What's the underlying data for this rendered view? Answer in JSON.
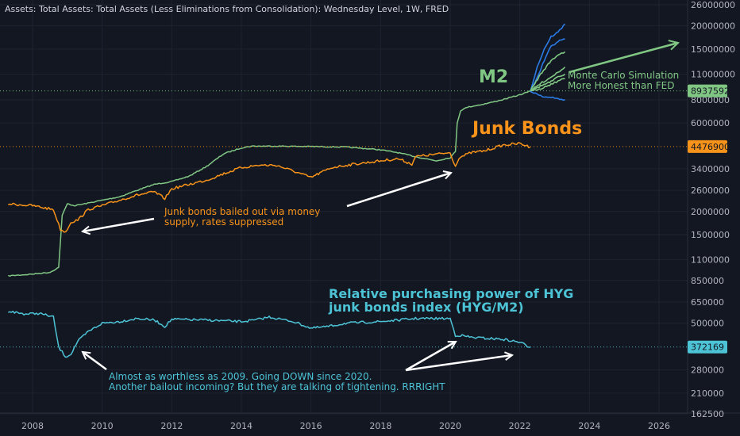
{
  "header": {
    "title": "Assets: Total Assets: Total Assets (Less Eliminations from Consolidation): Wednesday Level, 1W, FRED"
  },
  "colors": {
    "background": "#131722",
    "grid": "#1f2330",
    "m2": "#81c784",
    "junk": "#f7931a",
    "ratio": "#4dc3d6",
    "blue_sim": "#2a7be6",
    "arrow_white": "#ffffff",
    "axis_text": "#b2b5be"
  },
  "chart_data": {
    "type": "line",
    "y_scale": "log",
    "x_ticks": [
      "2008",
      "2010",
      "2012",
      "2014",
      "2016",
      "2018",
      "2020",
      "2022",
      "2024",
      "2026"
    ],
    "y_ticks": [
      "26000000",
      "20000000",
      "15000000",
      "11000000",
      "8000000",
      "6000000",
      "3400000",
      "2600000",
      "2000000",
      "1500000",
      "1100000",
      "850000",
      "650000",
      "500000",
      "280000",
      "210000",
      "162500"
    ],
    "last_value_labels": [
      {
        "series": "M2",
        "value": "8937592"
      },
      {
        "series": "Junk Bonds",
        "value": "4476900"
      },
      {
        "series": "HYG/M2",
        "value": "372169"
      }
    ],
    "series": [
      {
        "name": "M2",
        "x": [
          2007.3,
          2008.0,
          2008.5,
          2008.75,
          2008.85,
          2009.0,
          2009.2,
          2009.5,
          2010.0,
          2010.5,
          2011.0,
          2011.5,
          2012.0,
          2012.5,
          2013.0,
          2013.5,
          2014.0,
          2014.3,
          2014.6,
          2015.0,
          2016.0,
          2017.0,
          2018.0,
          2018.5,
          2019.0,
          2019.6,
          2020.0,
          2020.15,
          2020.2,
          2020.3,
          2020.5,
          2021.0,
          2021.5,
          2022.0,
          2022.3
        ],
        "y": [
          900000,
          920000,
          940000,
          1000000,
          1900000,
          2200000,
          2150000,
          2200000,
          2300000,
          2400000,
          2600000,
          2800000,
          2900000,
          3100000,
          3500000,
          4100000,
          4400000,
          4500000,
          4500000,
          4500000,
          4480000,
          4450000,
          4300000,
          4150000,
          3950000,
          3750000,
          3900000,
          4200000,
          6000000,
          7000000,
          7300000,
          7600000,
          8000000,
          8500000,
          8900000
        ]
      },
      {
        "name": "Junk Bonds",
        "x": [
          2007.3,
          2008.0,
          2008.6,
          2008.8,
          2008.95,
          2009.1,
          2009.3,
          2009.6,
          2010.0,
          2010.5,
          2011.0,
          2011.5,
          2011.8,
          2012.0,
          2012.5,
          2013.0,
          2013.5,
          2014.0,
          2014.5,
          2015.0,
          2015.5,
          2016.0,
          2016.3,
          2016.6,
          2017.0,
          2017.5,
          2018.0,
          2018.5,
          2018.9,
          2019.0,
          2019.5,
          2020.0,
          2020.15,
          2020.25,
          2020.4,
          2020.6,
          2021.0,
          2021.5,
          2022.0,
          2022.3
        ],
        "y": [
          2200000,
          2150000,
          2050000,
          1600000,
          1550000,
          1750000,
          1800000,
          2050000,
          2150000,
          2300000,
          2450000,
          2550000,
          2350000,
          2650000,
          2800000,
          2950000,
          3200000,
          3450000,
          3550000,
          3550000,
          3300000,
          3050000,
          3250000,
          3450000,
          3550000,
          3650000,
          3750000,
          3850000,
          3600000,
          3950000,
          4050000,
          4150000,
          3500000,
          3900000,
          4000000,
          4150000,
          4250000,
          4550000,
          4650000,
          4450000
        ]
      },
      {
        "name": "HYG/M2",
        "x": [
          2007.3,
          2007.8,
          2008.2,
          2008.6,
          2008.75,
          2008.95,
          2009.1,
          2009.3,
          2009.6,
          2010.0,
          2010.5,
          2011.0,
          2011.5,
          2011.8,
          2012.0,
          2013.0,
          2014.0,
          2014.4,
          2014.8,
          2015.5,
          2016.0,
          2016.5,
          2017.0,
          2018.0,
          2019.0,
          2020.0,
          2020.15,
          2020.3,
          2020.6,
          2021.0,
          2021.5,
          2022.0,
          2022.3
        ],
        "y": [
          580000,
          560000,
          565000,
          540000,
          370000,
          330000,
          340000,
          400000,
          450000,
          500000,
          510000,
          530000,
          520000,
          480000,
          525000,
          520000,
          510000,
          520000,
          540000,
          510000,
          470000,
          480000,
          500000,
          510000,
          530000,
          530000,
          430000,
          430000,
          420000,
          415000,
          410000,
          395000,
          370000
        ]
      }
    ],
    "simulation": {
      "name": "Monte Carlo Simulation",
      "start": [
        2022.3,
        8900000
      ],
      "paths": [
        {
          "color": "blue",
          "points": [
            [
              2022.3,
              8900000
            ],
            [
              2022.5,
              12000000
            ],
            [
              2022.7,
              15000000
            ],
            [
              2022.9,
              17500000
            ],
            [
              2023.1,
              18500000
            ],
            [
              2023.3,
              20500000
            ]
          ]
        },
        {
          "color": "blue",
          "points": [
            [
              2022.3,
              8900000
            ],
            [
              2022.5,
              10500000
            ],
            [
              2022.7,
              13000000
            ],
            [
              2022.9,
              15500000
            ],
            [
              2023.1,
              16500000
            ],
            [
              2023.3,
              17000000
            ]
          ]
        },
        {
          "color": "green",
          "points": [
            [
              2022.3,
              8900000
            ],
            [
              2022.6,
              11000000
            ],
            [
              2022.9,
              13000000
            ],
            [
              2023.1,
              14000000
            ],
            [
              2023.3,
              14500000
            ]
          ]
        },
        {
          "color": "green",
          "points": [
            [
              2022.3,
              8900000
            ],
            [
              2022.6,
              9800000
            ],
            [
              2022.9,
              10600000
            ],
            [
              2023.1,
              11300000
            ],
            [
              2023.3,
              12000000
            ]
          ]
        },
        {
          "color": "green",
          "points": [
            [
              2022.3,
              8900000
            ],
            [
              2022.6,
              9500000
            ],
            [
              2022.9,
              10000000
            ],
            [
              2023.1,
              10600000
            ],
            [
              2023.3,
              11000000
            ]
          ]
        },
        {
          "color": "green",
          "points": [
            [
              2022.3,
              8900000
            ],
            [
              2022.6,
              9200000
            ],
            [
              2022.9,
              9700000
            ],
            [
              2023.1,
              10100000
            ],
            [
              2023.3,
              10400000
            ]
          ]
        },
        {
          "color": "blue",
          "points": [
            [
              2022.3,
              8900000
            ],
            [
              2022.5,
              8600000
            ],
            [
              2022.7,
              8300000
            ],
            [
              2022.9,
              8200000
            ],
            [
              2023.1,
              8100000
            ],
            [
              2023.3,
              8000000
            ]
          ]
        }
      ]
    }
  },
  "annotations": {
    "m2_label": "M2",
    "junk_label": "Junk Bonds",
    "monte_carlo_line1": "Monte Carlo Simulation",
    "monte_carlo_line2": "More Honest than FED",
    "bailout_line1": "Junk bonds bailed out via money",
    "bailout_line2": "supply, rates suppressed",
    "ratio_line1": "Relative purchasing power of HYG",
    "ratio_line2": "junk bonds index (HYG/M2)",
    "bottom_line1": "Almost as worthless as 2009. Going DOWN since 2020.",
    "bottom_line2": "Another bailout incoming? But they are talking of tightening. RRRIGHT"
  }
}
